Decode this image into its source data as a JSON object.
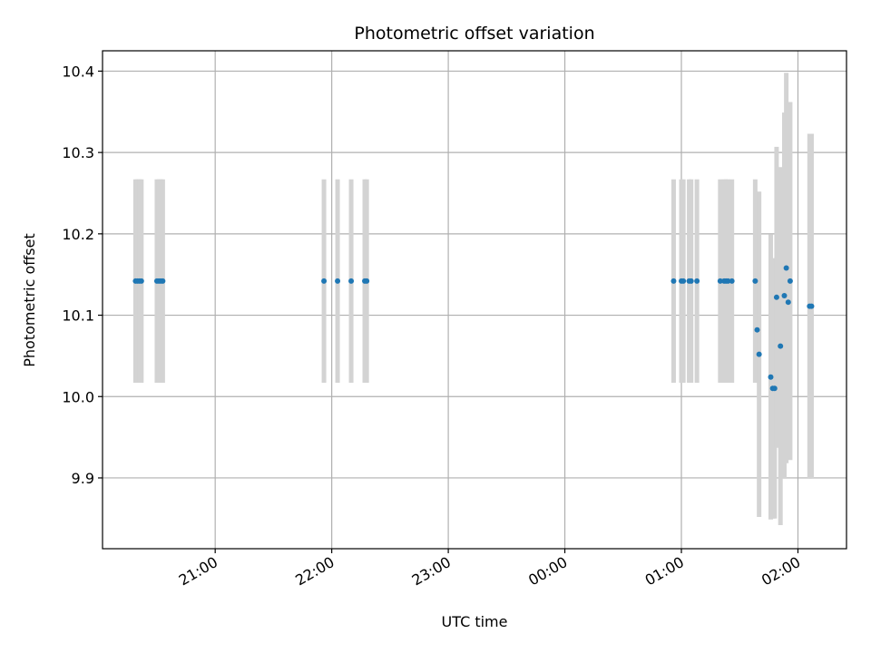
{
  "chart_data": {
    "type": "scatter",
    "title": "Photometric offset variation",
    "xlabel": "UTC time",
    "ylabel": "Photometric offset",
    "xlim": [
      "20:02",
      "02:25"
    ],
    "ylim": [
      9.813,
      10.425
    ],
    "x_ticks": [
      "21:00",
      "22:00",
      "23:00",
      "00:00",
      "01:00",
      "02:00"
    ],
    "y_ticks": [
      9.9,
      10.0,
      10.1,
      10.2,
      10.3,
      10.4
    ],
    "grid": true,
    "colors": {
      "points": "#1f77b4",
      "error_bars": "#d3d3d3",
      "grid": "#b0b0b0"
    },
    "series": [
      {
        "points": [
          {
            "x": "20:19",
            "y": 10.142,
            "err": 0.125
          },
          {
            "x": "20:20",
            "y": 10.142,
            "err": 0.125
          },
          {
            "x": "20:21",
            "y": 10.142,
            "err": 0.125
          },
          {
            "x": "20:22",
            "y": 10.142,
            "err": 0.125
          },
          {
            "x": "20:30",
            "y": 10.142,
            "err": 0.125
          },
          {
            "x": "20:31",
            "y": 10.142,
            "err": 0.125
          },
          {
            "x": "20:32",
            "y": 10.142,
            "err": 0.125
          },
          {
            "x": "20:33",
            "y": 10.142,
            "err": 0.125
          },
          {
            "x": "21:56",
            "y": 10.142,
            "err": 0.125
          },
          {
            "x": "22:03",
            "y": 10.142,
            "err": 0.125
          },
          {
            "x": "22:10",
            "y": 10.142,
            "err": 0.125
          },
          {
            "x": "22:17",
            "y": 10.142,
            "err": 0.125
          },
          {
            "x": "22:18",
            "y": 10.142,
            "err": 0.125
          },
          {
            "x": "00:56",
            "y": 10.142,
            "err": 0.125
          },
          {
            "x": "01:00",
            "y": 10.142,
            "err": 0.125
          },
          {
            "x": "01:01",
            "y": 10.142,
            "err": 0.125
          },
          {
            "x": "01:04",
            "y": 10.142,
            "err": 0.125
          },
          {
            "x": "01:05",
            "y": 10.142,
            "err": 0.125
          },
          {
            "x": "01:08",
            "y": 10.142,
            "err": 0.125
          },
          {
            "x": "01:20",
            "y": 10.142,
            "err": 0.125
          },
          {
            "x": "01:22",
            "y": 10.142,
            "err": 0.125
          },
          {
            "x": "01:23",
            "y": 10.142,
            "err": 0.125
          },
          {
            "x": "01:24",
            "y": 10.142,
            "err": 0.125
          },
          {
            "x": "01:26",
            "y": 10.142,
            "err": 0.125
          },
          {
            "x": "01:38",
            "y": 10.142,
            "err": 0.125
          },
          {
            "x": "01:39",
            "y": 10.082,
            "err": 0.065
          },
          {
            "x": "01:40",
            "y": 10.052,
            "err": 0.2
          },
          {
            "x": "01:46",
            "y": 10.024,
            "err": 0.175
          },
          {
            "x": "01:47",
            "y": 10.01,
            "err": 0.16
          },
          {
            "x": "01:48",
            "y": 10.01,
            "err": 0.16
          },
          {
            "x": "01:49",
            "y": 10.122,
            "err": 0.185
          },
          {
            "x": "01:51",
            "y": 10.062,
            "err": 0.22
          },
          {
            "x": "01:53",
            "y": 10.124,
            "err": 0.225
          },
          {
            "x": "01:54",
            "y": 10.158,
            "err": 0.24
          },
          {
            "x": "01:55",
            "y": 10.116,
            "err": 0.175
          },
          {
            "x": "01:56",
            "y": 10.142,
            "err": 0.22
          },
          {
            "x": "02:06",
            "y": 10.111,
            "err": 0.212
          },
          {
            "x": "02:07",
            "y": 10.111,
            "err": 0.212
          }
        ]
      }
    ]
  }
}
